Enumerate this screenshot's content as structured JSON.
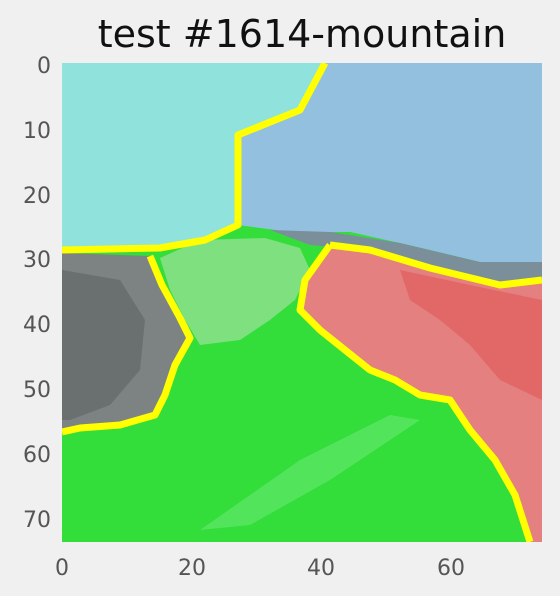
{
  "figure": {
    "title": "test #1614-mountain",
    "background": "#f0f0f0"
  },
  "axes": {
    "x_ticks": [
      "0",
      "20",
      "40",
      "60"
    ],
    "y_ticks": [
      "0",
      "10",
      "20",
      "30",
      "40",
      "50",
      "60",
      "70"
    ],
    "xlim": [
      0,
      74
    ],
    "ylim": [
      0,
      74
    ],
    "grid": false
  },
  "segments": [
    {
      "label": "sky-left",
      "color": "#90e2dc"
    },
    {
      "label": "sky-right",
      "color": "#94c0e0"
    },
    {
      "label": "rock",
      "color": "#808080"
    },
    {
      "label": "light-green",
      "color": "#7ee07e"
    },
    {
      "label": "green",
      "color": "#33dd3a"
    },
    {
      "label": "red",
      "color": "#e48080"
    },
    {
      "label": "boundary",
      "color": "#ffff00"
    }
  ]
}
